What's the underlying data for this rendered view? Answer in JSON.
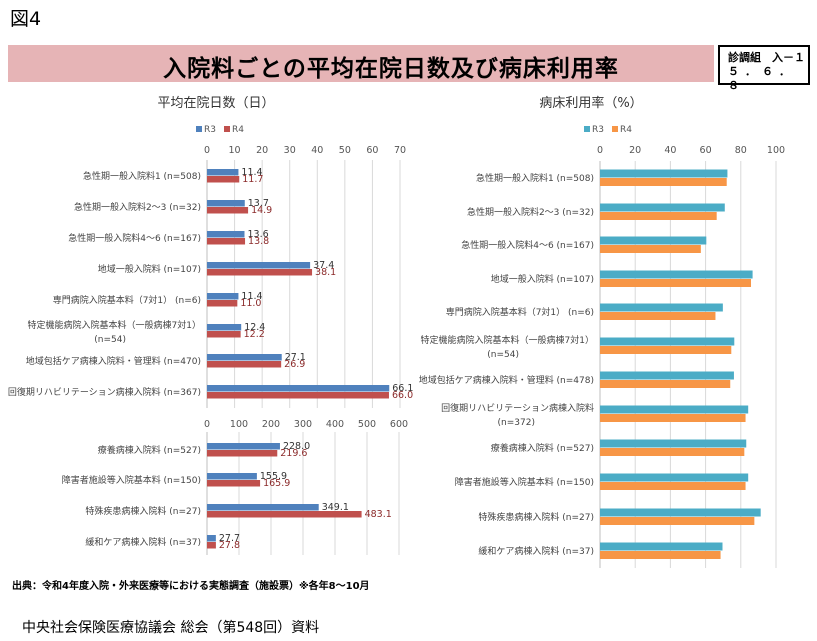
{
  "page": {
    "figure_label": "図4",
    "title": "入院料ごとの平均在院日数及び病床利用率",
    "ref_box": {
      "line1": "診調組　入－１",
      "line2": "５．６．８"
    },
    "source": "出典：令和4年度入院・外来医療等における実態調査（施設票）※各年8～10月",
    "footer": "中央社会保険医療協議会 総会（第548回）資料"
  },
  "colors": {
    "left_r3": "#4f81bd",
    "left_r4": "#c0504d",
    "right_r3": "#4bacc6",
    "right_r4": "#f79646",
    "banner": "#e6b4b6",
    "grid": "#d9d9d9"
  },
  "chart_data": [
    {
      "type": "bar",
      "orientation": "horizontal",
      "title": "平均在院日数（日）",
      "legend": [
        "R3",
        "R4"
      ],
      "legend_placement": "top",
      "panels": [
        {
          "xlim": [
            0,
            70
          ],
          "ticks": [
            "0",
            "10",
            "20",
            "30",
            "40",
            "50",
            "60",
            "70"
          ],
          "tick_values": [
            0,
            10,
            20,
            30,
            40,
            50,
            60,
            70
          ],
          "axis_position": "top",
          "categories": [
            [
              "急性期一般入院料1 (n=508)"
            ],
            [
              "急性期一般入院料2～3 (n=32)"
            ],
            [
              "急性期一般入院料4～6 (n=167)"
            ],
            [
              "地域一般入院料 (n=107)"
            ],
            [
              "専門病院入院基本料（7対1） (n=6)"
            ],
            [
              "特定機能病院入院基本料（一般病棟7対1）",
              "(n=54)"
            ],
            [
              "地域包括ケア病棟入院料・管理料 (n=470)"
            ],
            [
              "回復期リハビリテーション病棟入院料 (n=367)"
            ]
          ],
          "series": [
            {
              "name": "R3",
              "values": [
                11.4,
                13.7,
                13.6,
                37.4,
                11.4,
                12.4,
                27.1,
                66.1
              ],
              "labels": [
                "11.4",
                "13.7",
                "13.6",
                "37.4",
                "11.4",
                "12.4",
                "27.1",
                "66.1"
              ]
            },
            {
              "name": "R4",
              "values": [
                11.7,
                14.9,
                13.8,
                38.1,
                11.0,
                12.2,
                26.9,
                66.0
              ],
              "labels": [
                "11.7",
                "14.9",
                "13.8",
                "38.1",
                "11.0",
                "12.2",
                "26.9",
                "66.0"
              ]
            }
          ]
        },
        {
          "xlim": [
            0,
            600
          ],
          "ticks": [
            "0",
            "100",
            "200",
            "300",
            "400",
            "500",
            "600"
          ],
          "tick_values": [
            0,
            100,
            200,
            300,
            400,
            500,
            600
          ],
          "axis_position": "top",
          "categories": [
            [
              "療養病棟入院料 (n=527)"
            ],
            [
              "障害者施設等入院基本料 (n=150)"
            ],
            [
              "特殊疾患病棟入院料 (n=27)"
            ],
            [
              "緩和ケア病棟入院料 (n=37)"
            ]
          ],
          "series": [
            {
              "name": "R3",
              "values": [
                228.0,
                155.9,
                349.1,
                27.7
              ],
              "labels": [
                "228.0",
                "155.9",
                "349.1",
                "27.7"
              ]
            },
            {
              "name": "R4",
              "values": [
                219.6,
                165.9,
                483.1,
                27.8
              ],
              "labels": [
                "219.6",
                "165.9",
                "483.1",
                "27.8"
              ]
            }
          ]
        }
      ]
    },
    {
      "type": "bar",
      "orientation": "horizontal",
      "title": "病床利用率（%）",
      "legend": [
        "R3",
        "R4"
      ],
      "legend_placement": "top",
      "xlim": [
        0,
        100
      ],
      "ticks": [
        "0",
        "20",
        "40",
        "60",
        "80",
        "100"
      ],
      "tick_values": [
        0,
        20,
        40,
        60,
        80,
        100
      ],
      "axis_position": "top",
      "categories": [
        [
          "急性期一般入院料1 (n=508)"
        ],
        [
          "急性期一般入院料2～3 (n=32)"
        ],
        [
          "急性期一般入院料4～6 (n=167)"
        ],
        [
          "地域一般入院料 (n=107)"
        ],
        [
          "専門病院入院基本料（7対1） (n=6)"
        ],
        [
          "特定機能病院入院基本料（一般病棟7対1）",
          "(n=54)"
        ],
        [
          "地域包括ケア病棟入院料・管理料 (n=478)"
        ],
        [
          "回復期リハビリテーション病棟入院料",
          "(n=372)"
        ],
        [
          "療養病棟入院料 (n=527)"
        ],
        [
          "障害者施設等入院基本料 (n=150)"
        ],
        [
          "特殊疾患病棟入院料 (n=27)"
        ],
        [
          "緩和ケア病棟入院料 (n=37)"
        ]
      ],
      "series": [
        {
          "name": "R3",
          "values": [
            72.4,
            70.9,
            60.4,
            86.7,
            69.8,
            76.3,
            76.1,
            84.2,
            83.1,
            84.2,
            91.3,
            69.6
          ]
        },
        {
          "name": "R4",
          "values": [
            72.0,
            66.3,
            57.3,
            85.8,
            65.6,
            74.6,
            74.0,
            82.7,
            82.0,
            82.7,
            87.7,
            68.5
          ]
        }
      ]
    }
  ]
}
